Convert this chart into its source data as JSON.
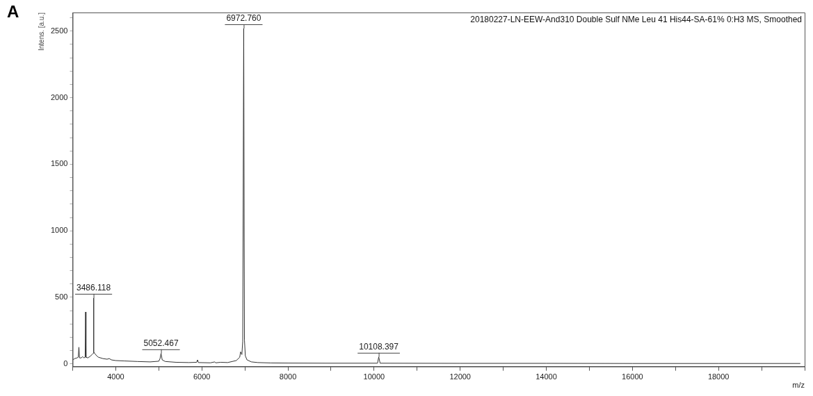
{
  "chart_data": {
    "type": "line",
    "title": "20180227-LN-EEW-And310 Double Sulf NMe Leu 41 His44-SA-61% 0:H3 MS, Smoothed",
    "xlabel": "m/z",
    "ylabel": "Intens. [a.u.]",
    "annotations": [
      "A",
      {
        "text": "3486.118",
        "x": 3486.118,
        "y": 495
      },
      {
        "text": "5052.467",
        "x": 5052.467,
        "y": 78
      },
      {
        "text": "6972.760",
        "x": 6972.76,
        "y": 2520
      },
      {
        "text": "10108.397",
        "x": 10108.397,
        "y": 52
      }
    ],
    "x": [
      3000,
      3050,
      3100,
      3130,
      3145,
      3160,
      3200,
      3230,
      3260,
      3290,
      3300,
      3310,
      3350,
      3400,
      3450,
      3480,
      3486.118,
      3492,
      3520,
      3560,
      3600,
      3700,
      3800,
      3850,
      3900,
      4000,
      4200,
      4500,
      4800,
      5000,
      5030,
      5052.467,
      5080,
      5150,
      5400,
      5700,
      5880,
      5900,
      5920,
      6200,
      6300,
      6320,
      6440,
      6600,
      6800,
      6880,
      6900,
      6930,
      6950,
      6972.76,
      6990,
      7010,
      7050,
      7150,
      7300,
      7600,
      8000,
      9000,
      10080,
      10108.397,
      10140,
      12000,
      14000,
      16000,
      18000,
      19900
    ],
    "series": [
      {
        "color": "#333333",
        "values": [
          30,
          40,
          45,
          50,
          125,
          45,
          45,
          55,
          45,
          50,
          390,
          50,
          45,
          55,
          70,
          80,
          495,
          90,
          75,
          60,
          50,
          40,
          35,
          40,
          30,
          25,
          22,
          18,
          15,
          20,
          40,
          78,
          30,
          18,
          12,
          10,
          12,
          30,
          10,
          8,
          15,
          8,
          12,
          10,
          25,
          50,
          90,
          70,
          170,
          2520,
          180,
          60,
          30,
          15,
          10,
          7,
          6,
          5,
          5,
          52,
          5,
          4,
          4,
          3,
          3,
          3
        ]
      }
    ],
    "xlim": [
      3000,
      20000
    ],
    "xticks": [
      {
        "value": 3000,
        "label": null
      },
      4000,
      {
        "value": 5000,
        "label": null
      },
      6000,
      {
        "value": 7000,
        "label": null
      },
      8000,
      {
        "value": 9000,
        "label": null
      },
      10000,
      {
        "value": 11000,
        "label": null
      },
      12000,
      {
        "value": 13000,
        "label": null
      },
      14000,
      {
        "value": 15000,
        "label": null
      },
      16000,
      {
        "value": 17000,
        "label": null
      },
      18000,
      {
        "value": 19000,
        "label": null
      },
      {
        "value": 20000,
        "label": null
      }
    ],
    "ylim": [
      -20,
      2640
    ],
    "yticks": [
      0,
      {
        "value": 100,
        "label": null
      },
      {
        "value": 200,
        "label": null
      },
      {
        "value": 300,
        "label": null
      },
      {
        "value": 400,
        "label": null
      },
      500,
      {
        "value": 600,
        "label": null
      },
      {
        "value": 700,
        "label": null
      },
      {
        "value": 800,
        "label": null
      },
      {
        "value": 900,
        "label": null
      },
      1000,
      {
        "value": 1100,
        "label": null
      },
      {
        "value": 1200,
        "label": null
      },
      {
        "value": 1300,
        "label": null
      },
      {
        "value": 1400,
        "label": null
      },
      1500,
      {
        "value": 1600,
        "label": null
      },
      {
        "value": 1700,
        "label": null
      },
      {
        "value": 1800,
        "label": null
      },
      {
        "value": 1900,
        "label": null
      },
      2000,
      {
        "value": 2100,
        "label": null
      },
      {
        "value": 2200,
        "label": null
      },
      {
        "value": 2300,
        "label": null
      },
      {
        "value": 2400,
        "label": null
      },
      2500,
      {
        "value": 2600,
        "label": null
      }
    ],
    "grid": false,
    "legend": false,
    "marker": "none",
    "line_style": "solid"
  }
}
